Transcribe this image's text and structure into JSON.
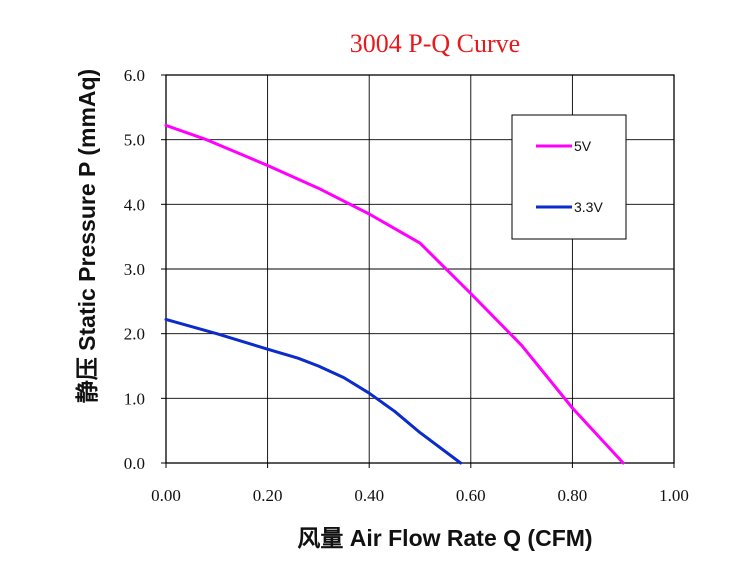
{
  "chart_data": {
    "type": "line",
    "title": "3004 P-Q Curve",
    "xlabel": "风量 Air Flow Rate Q  (CFM)",
    "ylabel": "静压 Static Pressure  P (mmAq)",
    "xlim": [
      0,
      1.0
    ],
    "ylim": [
      0,
      6.0
    ],
    "x_ticks": [
      "0.00",
      "0.20",
      "0.40",
      "0.60",
      "0.80",
      "1.00"
    ],
    "y_ticks": [
      "0.0",
      "1.0",
      "2.0",
      "3.0",
      "4.0",
      "5.0",
      "6.0"
    ],
    "grid": true,
    "legend_position": "top-right",
    "series": [
      {
        "name": "5V",
        "color": "#ff00ff",
        "x": [
          0.0,
          0.08,
          0.2,
          0.3,
          0.4,
          0.5,
          0.6,
          0.7,
          0.8,
          0.9
        ],
        "y": [
          5.22,
          5.0,
          4.6,
          4.25,
          3.85,
          3.4,
          2.62,
          1.82,
          0.85,
          0.0
        ]
      },
      {
        "name": "3.3V",
        "color": "#0b2bcb",
        "x": [
          0.0,
          0.1,
          0.2,
          0.26,
          0.3,
          0.35,
          0.4,
          0.45,
          0.5,
          0.58
        ],
        "y": [
          2.22,
          2.0,
          1.76,
          1.62,
          1.5,
          1.32,
          1.08,
          0.8,
          0.47,
          0.0
        ]
      }
    ]
  }
}
